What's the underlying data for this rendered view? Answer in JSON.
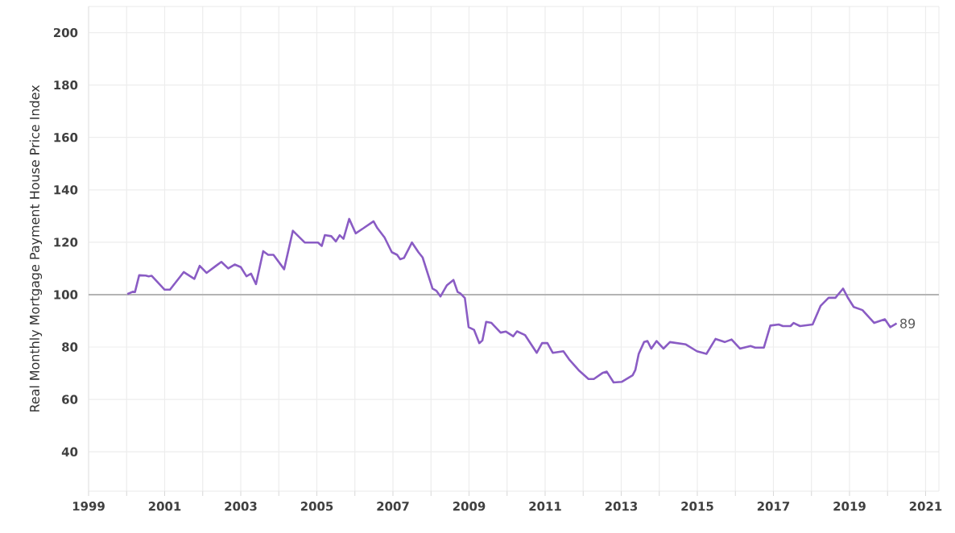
{
  "chart_data": {
    "type": "line",
    "ylabel": "Real Monthly Mortgage Payment House Price Index",
    "xlim": [
      1999,
      2021.35
    ],
    "ylim": [
      25,
      210
    ],
    "xticks": [
      1999,
      {
        "value": 2000,
        "label": null
      },
      2001,
      {
        "value": 2002,
        "label": null
      },
      2003,
      {
        "value": 2004,
        "label": null
      },
      2005,
      {
        "value": 2006,
        "label": null
      },
      2007,
      {
        "value": 2008,
        "label": null
      },
      2009,
      {
        "value": 2010,
        "label": null
      },
      2011,
      {
        "value": 2012,
        "label": null
      },
      2013,
      {
        "value": 2014,
        "label": null
      },
      2015,
      {
        "value": 2016,
        "label": null
      },
      2017,
      {
        "value": 2018,
        "label": null
      },
      2019,
      {
        "value": 2020,
        "label": null
      },
      2021
    ],
    "yticks": [
      40,
      60,
      80,
      100,
      120,
      140,
      160,
      180,
      200
    ],
    "grid": true,
    "ref_lines": [
      {
        "axis": "y",
        "value": 100,
        "color": "#b4b4b4"
      }
    ],
    "annotations": [
      {
        "text": "89",
        "x": 2020.24,
        "y": 89
      }
    ],
    "series": [
      {
        "color": "#8a5cc4",
        "x": [
          2000.02,
          2000.16,
          2000.22,
          2000.33,
          2000.5,
          2000.58,
          2000.66,
          2001.0,
          2001.14,
          2001.5,
          2001.78,
          2001.92,
          2002.1,
          2002.35,
          2002.49,
          2002.67,
          2002.84,
          2003.0,
          2003.15,
          2003.27,
          2003.4,
          2003.59,
          2003.72,
          2003.86,
          2004.14,
          2004.37,
          2004.68,
          2005.03,
          2005.13,
          2005.21,
          2005.38,
          2005.5,
          2005.6,
          2005.7,
          2005.85,
          2006.02,
          2006.23,
          2006.49,
          2006.59,
          2006.78,
          2006.97,
          2007.11,
          2007.19,
          2007.29,
          2007.5,
          2007.67,
          2007.78,
          2008.04,
          2008.14,
          2008.25,
          2008.42,
          2008.59,
          2008.7,
          2008.77,
          2008.89,
          2008.99,
          2009.13,
          2009.27,
          2009.35,
          2009.45,
          2009.59,
          2009.83,
          2009.97,
          2010.16,
          2010.26,
          2010.47,
          2010.78,
          2010.92,
          2011.06,
          2011.2,
          2011.48,
          2011.63,
          2011.88,
          2012.14,
          2012.28,
          2012.52,
          2012.62,
          2012.8,
          2013.01,
          2013.3,
          2013.37,
          2013.46,
          2013.6,
          2013.69,
          2013.79,
          2013.93,
          2014.11,
          2014.28,
          2014.7,
          2014.99,
          2015.24,
          2015.48,
          2015.72,
          2015.9,
          2016.12,
          2016.4,
          2016.52,
          2016.75,
          2016.92,
          2017.14,
          2017.25,
          2017.45,
          2017.53,
          2017.7,
          2018.03,
          2018.24,
          2018.45,
          2018.63,
          2018.83,
          2018.95,
          2019.11,
          2019.34,
          2019.65,
          2019.93,
          2020.07,
          2020.24
        ],
        "values": [
          100.2,
          101.1,
          101.0,
          107.4,
          107.3,
          107,
          107.2,
          101.9,
          101.9,
          108.6,
          106,
          111,
          108.3,
          111,
          112.5,
          110,
          111.5,
          110.5,
          107,
          108,
          104,
          116.6,
          115.2,
          115.2,
          109.7,
          124.4,
          119.9,
          119.9,
          118.6,
          122.7,
          122.3,
          120.3,
          122.7,
          121.3,
          128.9,
          123.4,
          125.4,
          128,
          125.4,
          121.8,
          116.2,
          115.2,
          113.5,
          114,
          119.9,
          116.2,
          114.2,
          102.3,
          101.5,
          99.3,
          103.6,
          105.6,
          101,
          100.5,
          98.7,
          87.6,
          86.6,
          81.5,
          82.5,
          89.6,
          89.2,
          85.5,
          85.9,
          84.1,
          86,
          84.6,
          77.8,
          81.5,
          81.5,
          77.8,
          78.4,
          75.3,
          71.2,
          67.8,
          67.8,
          70.2,
          70.6,
          66.5,
          66.7,
          69.2,
          71.2,
          77.4,
          81.9,
          82.3,
          79.4,
          82.3,
          79.4,
          81.9,
          81,
          78.4,
          77.4,
          83.1,
          81.9,
          82.9,
          79.4,
          80.4,
          79.8,
          79.8,
          88.2,
          88.6,
          88,
          88,
          89.2,
          88,
          88.6,
          95.7,
          98.8,
          98.8,
          102.3,
          99,
          95.3,
          94.1,
          89.2,
          90.6,
          87.6,
          89
        ]
      }
    ]
  }
}
